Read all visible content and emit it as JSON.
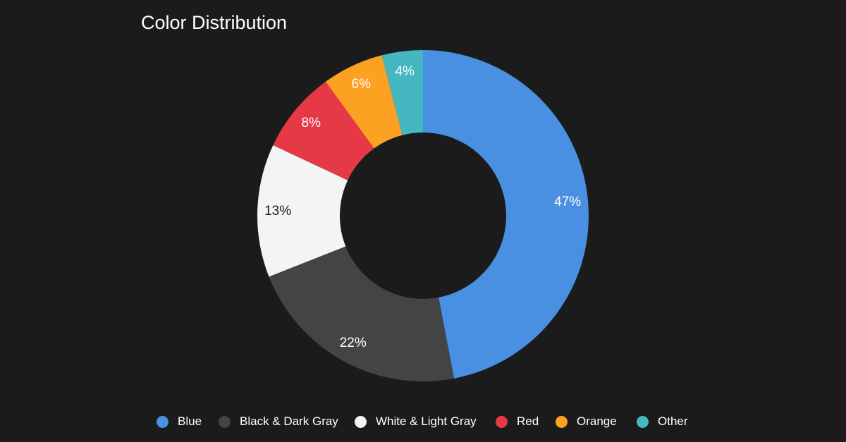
{
  "chart_data": {
    "type": "pie",
    "variant": "donut",
    "title": "Color Distribution",
    "categories": [
      "Blue",
      "Black & Dark Gray",
      "White & Light Gray",
      "Red",
      "Orange",
      "Other"
    ],
    "values": [
      47,
      22,
      13,
      8,
      6,
      4
    ],
    "labels": [
      "47%",
      "22%",
      "13%",
      "8%",
      "6%",
      "4%"
    ],
    "colors": [
      "#4a90e2",
      "#444444",
      "#f4f4f4",
      "#e63946",
      "#fca121",
      "#45b7c1"
    ],
    "label_colors": [
      "#ffffff",
      "#ffffff",
      "#1b1b1b",
      "#ffffff",
      "#ffffff",
      "#ffffff"
    ],
    "legend_position": "bottom",
    "background": "#1b1b1b"
  }
}
